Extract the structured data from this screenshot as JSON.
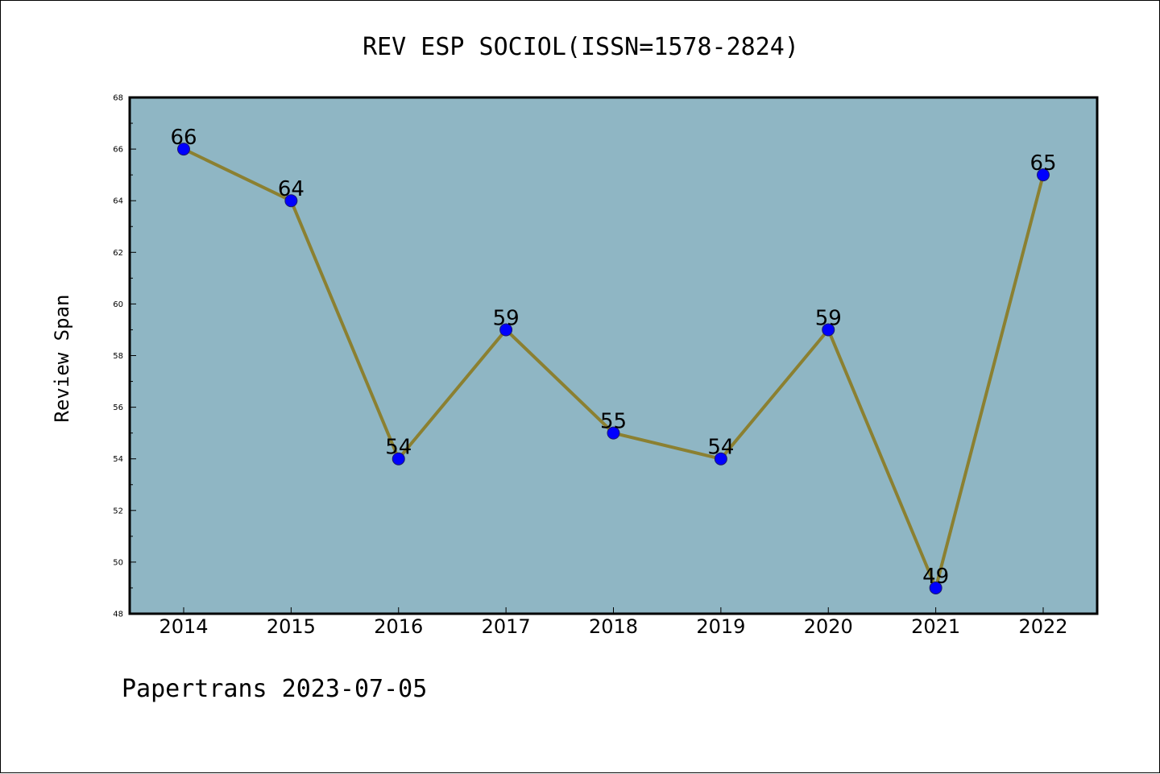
{
  "chart_data": {
    "type": "line",
    "title": "REV ESP SOCIOL(ISSN=1578-2824)",
    "xlabel": "",
    "ylabel": "Review Span",
    "categories": [
      "2014",
      "2015",
      "2016",
      "2017",
      "2018",
      "2019",
      "2020",
      "2021",
      "2022"
    ],
    "series": [
      {
        "values": [
          66,
          64,
          54,
          59,
          55,
          54,
          59,
          49,
          65
        ]
      }
    ],
    "data_labels": [
      "66",
      "64",
      "54",
      "59",
      "55",
      "54",
      "59",
      "49",
      "65"
    ],
    "ylim": [
      48,
      68
    ],
    "yticks": [
      48,
      50,
      52,
      54,
      56,
      58,
      60,
      62,
      64,
      66,
      68
    ],
    "ytick_labels": [
      "48",
      "50",
      "52",
      "54",
      "56",
      "58",
      "60",
      "62",
      "64",
      "66",
      "68"
    ],
    "grid": false,
    "legend": "none",
    "colors": {
      "plot_background": "#8fb6c4",
      "line": "#8b8031",
      "marker": "#0000ff",
      "frame": "#000000"
    }
  },
  "footer": {
    "text": "Papertrans 2023-07-05"
  }
}
